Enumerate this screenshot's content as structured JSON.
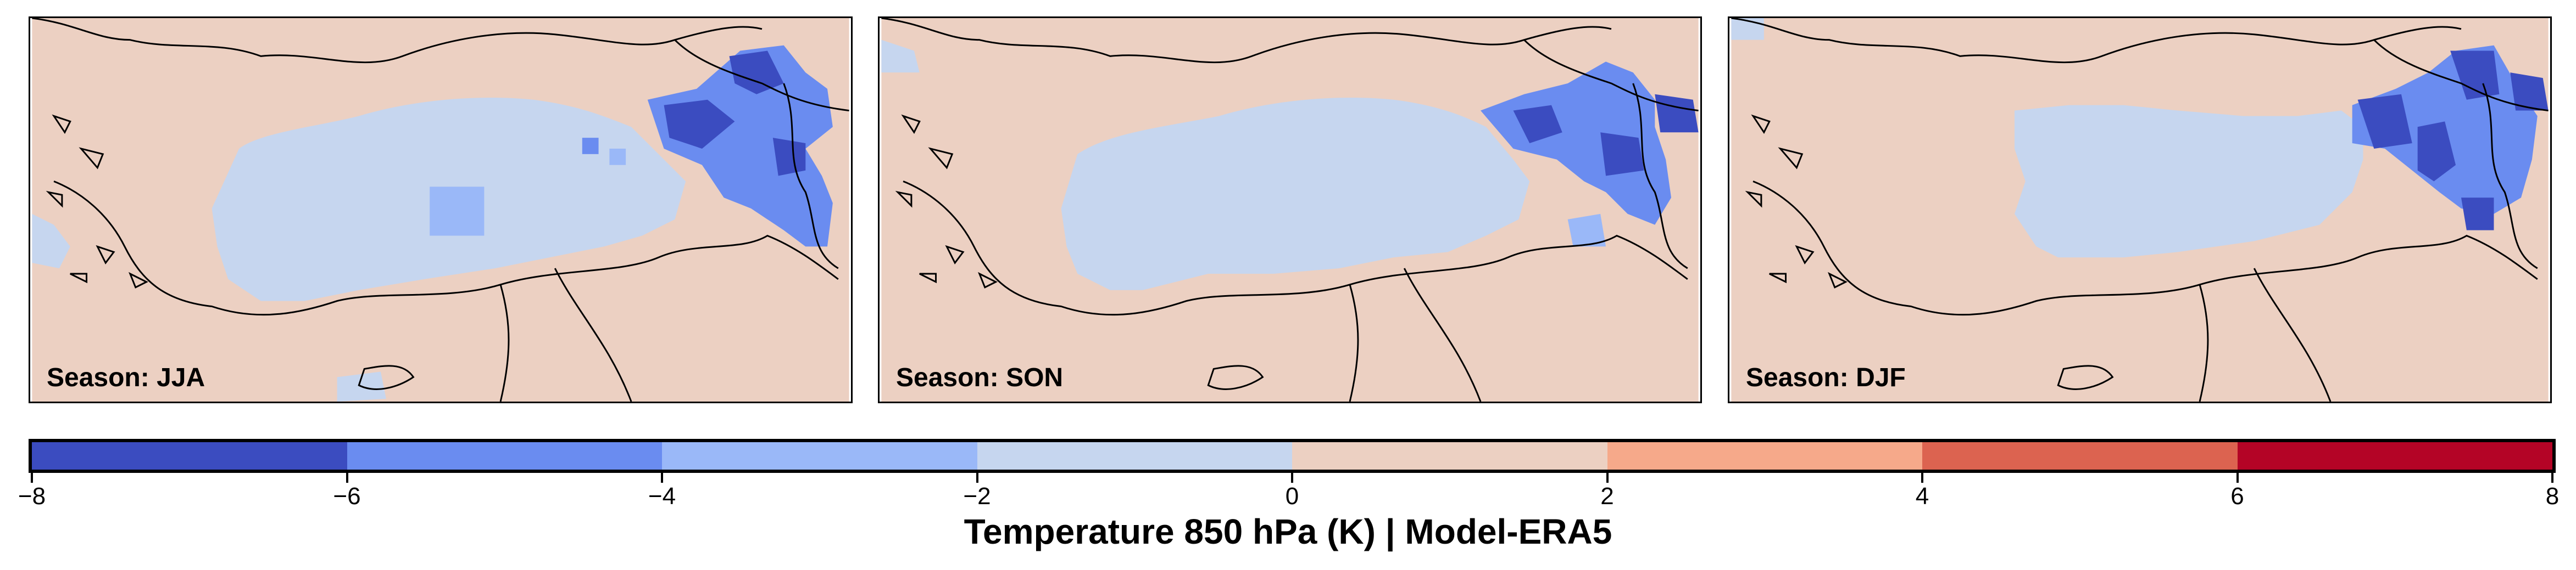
{
  "colors": {
    "ocean_land": "#ecd0c2",
    "light_blue": "#c6d6ef",
    "mid_blue": "#9ab8f8",
    "blue": "#6a8cf0",
    "dark_blue": "#3b4cc0"
  },
  "panels": [
    {
      "id": "jja",
      "label": "Season: JJA"
    },
    {
      "id": "son",
      "label": "Season: SON"
    },
    {
      "id": "djf",
      "label": "Season: DJF"
    }
  ],
  "colorbar": {
    "title": "Temperature 850 hPa (K) | Model-ERA5",
    "ticks": [
      "−8",
      "−6",
      "−4",
      "−2",
      "0",
      "2",
      "4",
      "6",
      "8"
    ],
    "colors": [
      "#3b4cc0",
      "#6a8cf0",
      "#9ab8f8",
      "#c6d6ef",
      "#ecd0c2",
      "#f6a98a",
      "#dc6350",
      "#b40426"
    ]
  }
}
